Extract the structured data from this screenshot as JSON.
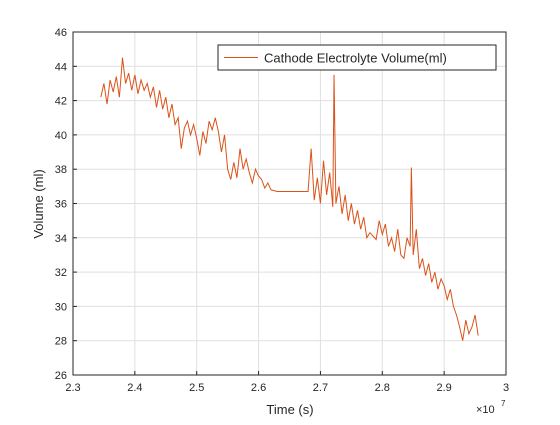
{
  "chart_data": {
    "type": "line",
    "xlabel": "Time (s)",
    "ylabel": "Volume (ml)",
    "x_scale_base": "×10",
    "x_scale_exponent": "7",
    "legend": "upper-right",
    "grid": true,
    "x": [
      23450000,
      23500000,
      23550000,
      23600000,
      23650000,
      23700000,
      23750000,
      23800000,
      23850000,
      23900000,
      23950000,
      24000000,
      24050000,
      24100000,
      24150000,
      24200000,
      24250000,
      24300000,
      24350000,
      24400000,
      24450000,
      24500000,
      24550000,
      24600000,
      24650000,
      24700000,
      24750000,
      24800000,
      24850000,
      24900000,
      24950000,
      25000000,
      25050000,
      25100000,
      25150000,
      25200000,
      25250000,
      25300000,
      25350000,
      25400000,
      25450000,
      25500000,
      25550000,
      25600000,
      25650000,
      25700000,
      25750000,
      25800000,
      25850000,
      25900000,
      25950000,
      26000000,
      26050000,
      26100000,
      26150000,
      26200000,
      26300000,
      26600000,
      26800000,
      26850000,
      26900000,
      26950000,
      27000000,
      27050000,
      27100000,
      27150000,
      27200000,
      27220000,
      27250000,
      27300000,
      27350000,
      27400000,
      27450000,
      27500000,
      27550000,
      27600000,
      27650000,
      27700000,
      27750000,
      27800000,
      27900000,
      27950000,
      28000000,
      28050000,
      28100000,
      28150000,
      28200000,
      28250000,
      28300000,
      28350000,
      28400000,
      28450000,
      28470000,
      28500000,
      28550000,
      28600000,
      28650000,
      28700000,
      28750000,
      28800000,
      28850000,
      28900000,
      28950000,
      29000000,
      29050000,
      29100000,
      29150000,
      29200000,
      29250000,
      29300000,
      29350000,
      29400000,
      29450000,
      29500000,
      29550000
    ],
    "series": [
      {
        "name": "Cathode Electrolyte Volume(ml)",
        "color": "#D95319",
        "values": [
          42.2,
          43.0,
          41.8,
          43.2,
          42.5,
          43.4,
          42.2,
          44.5,
          43.0,
          43.6,
          42.6,
          43.5,
          42.4,
          43.2,
          42.6,
          43.0,
          42.2,
          42.8,
          41.6,
          42.6,
          41.5,
          42.2,
          41.0,
          41.8,
          40.6,
          41.0,
          39.2,
          40.4,
          40.8,
          40.0,
          40.6,
          39.8,
          38.8,
          40.2,
          39.5,
          40.8,
          40.3,
          41.0,
          40.2,
          39.0,
          40.0,
          38.0,
          37.4,
          38.4,
          37.5,
          39.2,
          38.0,
          38.6,
          37.8,
          37.2,
          38.0,
          37.6,
          37.4,
          36.9,
          37.2,
          36.8,
          36.7,
          36.7,
          36.7,
          39.2,
          36.2,
          37.5,
          36.0,
          38.5,
          36.5,
          37.8,
          35.8,
          43.5,
          36.0,
          37.0,
          35.4,
          36.5,
          35.0,
          36.0,
          34.8,
          35.6,
          34.5,
          35.2,
          34.0,
          34.3,
          33.9,
          35.0,
          34.2,
          34.8,
          33.5,
          34.0,
          33.2,
          34.5,
          33.0,
          32.8,
          34.0,
          33.5,
          38.1,
          33.0,
          34.5,
          32.2,
          32.8,
          31.8,
          32.5,
          31.4,
          32.0,
          31.0,
          31.6,
          31.2,
          30.4,
          31.0,
          30.0,
          29.5,
          28.8,
          28.0,
          29.2,
          28.4,
          28.8,
          29.5,
          28.3
        ]
      }
    ],
    "xlim": [
      23000000,
      30000000
    ],
    "xticks": [
      {
        "value": 23000000,
        "label": "2.3"
      },
      {
        "value": 24000000,
        "label": "2.4"
      },
      {
        "value": 25000000,
        "label": "2.5"
      },
      {
        "value": 26000000,
        "label": "2.6"
      },
      {
        "value": 27000000,
        "label": "2.7"
      },
      {
        "value": 28000000,
        "label": "2.8"
      },
      {
        "value": 29000000,
        "label": "2.9"
      },
      {
        "value": 30000000,
        "label": "3"
      }
    ],
    "ylim": [
      26,
      46
    ],
    "yticks": [
      26,
      28,
      30,
      32,
      34,
      36,
      38,
      40,
      42,
      44,
      46
    ]
  }
}
